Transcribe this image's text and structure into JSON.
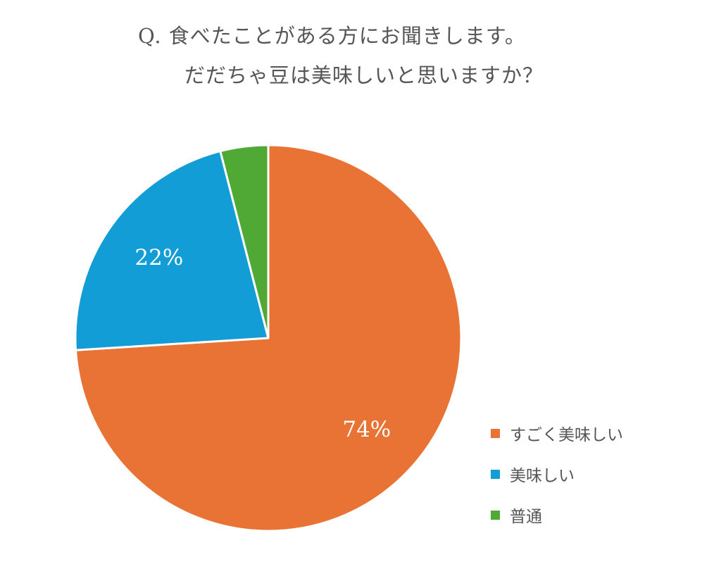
{
  "title": {
    "line1": "Q.  食べたことがある方にお聞きします。",
    "line2": "だだちゃ豆は美味しいと思いますか？"
  },
  "chart_data": {
    "type": "pie",
    "slices": [
      {
        "label": "すごく美味しい",
        "value": 74,
        "value_label": "74%",
        "color": "#E97334"
      },
      {
        "label": "美味しい",
        "value": 22,
        "value_label": "22%",
        "color": "#129DD6"
      },
      {
        "label": "普通",
        "value": 4,
        "value_label": "",
        "color": "#4FA934"
      }
    ],
    "start": "12 o'clock",
    "direction": "clockwise",
    "legend_position": "bottom-right"
  }
}
